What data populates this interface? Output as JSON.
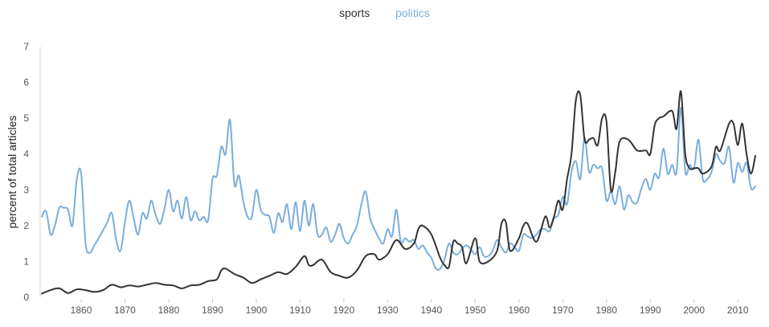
{
  "legend": {
    "sports": "sports",
    "politics": "politics"
  },
  "chart_data": {
    "type": "line",
    "title": "",
    "xlabel": "",
    "ylabel": "percent of total articles",
    "xlim": [
      1851,
      2014
    ],
    "ylim": [
      0,
      7
    ],
    "x_ticks": [
      1860,
      1870,
      1880,
      1890,
      1900,
      1910,
      1920,
      1930,
      1940,
      1950,
      1960,
      1970,
      1980,
      1990,
      2000,
      2010
    ],
    "y_ticks": [
      0,
      1,
      2,
      3,
      4,
      5,
      6,
      7
    ],
    "grid": false,
    "legend_position": "top-center",
    "series": [
      {
        "name": "sports",
        "color": "#333333",
        "points": [
          [
            1851,
            0.1
          ],
          [
            1853,
            0.2
          ],
          [
            1855,
            0.25
          ],
          [
            1857,
            0.12
          ],
          [
            1859,
            0.22
          ],
          [
            1861,
            0.2
          ],
          [
            1863,
            0.15
          ],
          [
            1865,
            0.2
          ],
          [
            1867,
            0.35
          ],
          [
            1869,
            0.28
          ],
          [
            1871,
            0.33
          ],
          [
            1873,
            0.3
          ],
          [
            1875,
            0.35
          ],
          [
            1877,
            0.4
          ],
          [
            1879,
            0.35
          ],
          [
            1881,
            0.33
          ],
          [
            1883,
            0.25
          ],
          [
            1885,
            0.33
          ],
          [
            1887,
            0.35
          ],
          [
            1889,
            0.45
          ],
          [
            1891,
            0.5
          ],
          [
            1892,
            0.75
          ],
          [
            1893,
            0.8
          ],
          [
            1895,
            0.65
          ],
          [
            1897,
            0.55
          ],
          [
            1899,
            0.4
          ],
          [
            1901,
            0.5
          ],
          [
            1903,
            0.6
          ],
          [
            1905,
            0.7
          ],
          [
            1907,
            0.65
          ],
          [
            1909,
            0.85
          ],
          [
            1911,
            1.15
          ],
          [
            1912,
            0.9
          ],
          [
            1913,
            0.9
          ],
          [
            1915,
            1.05
          ],
          [
            1917,
            0.7
          ],
          [
            1919,
            0.6
          ],
          [
            1921,
            0.55
          ],
          [
            1923,
            0.75
          ],
          [
            1925,
            1.15
          ],
          [
            1927,
            1.2
          ],
          [
            1928,
            1.05
          ],
          [
            1930,
            1.2
          ],
          [
            1932,
            1.6
          ],
          [
            1934,
            1.35
          ],
          [
            1936,
            1.5
          ],
          [
            1937,
            1.9
          ],
          [
            1938,
            2.0
          ],
          [
            1940,
            1.75
          ],
          [
            1942,
            1.1
          ],
          [
            1943,
            0.9
          ],
          [
            1944,
            0.85
          ],
          [
            1945,
            1.55
          ],
          [
            1946,
            1.5
          ],
          [
            1947,
            1.4
          ],
          [
            1948,
            0.95
          ],
          [
            1950,
            1.65
          ],
          [
            1951,
            1.0
          ],
          [
            1953,
            1.0
          ],
          [
            1955,
            1.3
          ],
          [
            1956,
            2.05
          ],
          [
            1957,
            2.1
          ],
          [
            1958,
            1.3
          ],
          [
            1960,
            1.65
          ],
          [
            1961,
            2.0
          ],
          [
            1962,
            2.05
          ],
          [
            1964,
            1.55
          ],
          [
            1966,
            2.25
          ],
          [
            1967,
            1.95
          ],
          [
            1968,
            2.25
          ],
          [
            1969,
            2.7
          ],
          [
            1970,
            2.45
          ],
          [
            1971,
            3.3
          ],
          [
            1972,
            4.0
          ],
          [
            1973,
            5.5
          ],
          [
            1974,
            5.65
          ],
          [
            1975,
            4.4
          ],
          [
            1976,
            4.4
          ],
          [
            1977,
            4.45
          ],
          [
            1978,
            4.25
          ],
          [
            1979,
            5.0
          ],
          [
            1980,
            4.9
          ],
          [
            1981,
            3.0
          ],
          [
            1982,
            3.5
          ],
          [
            1983,
            4.35
          ],
          [
            1985,
            4.4
          ],
          [
            1987,
            4.1
          ],
          [
            1989,
            4.1
          ],
          [
            1990,
            4.0
          ],
          [
            1991,
            4.8
          ],
          [
            1992,
            5.0
          ],
          [
            1993,
            5.05
          ],
          [
            1995,
            5.2
          ],
          [
            1996,
            4.7
          ],
          [
            1997,
            5.75
          ],
          [
            1998,
            4.0
          ],
          [
            1999,
            3.6
          ],
          [
            2000,
            3.6
          ],
          [
            2001,
            3.6
          ],
          [
            2002,
            3.45
          ],
          [
            2004,
            3.65
          ],
          [
            2005,
            4.2
          ],
          [
            2006,
            4.1
          ],
          [
            2008,
            4.85
          ],
          [
            2009,
            4.85
          ],
          [
            2010,
            4.25
          ],
          [
            2011,
            4.85
          ],
          [
            2012,
            4.0
          ],
          [
            2013,
            3.45
          ],
          [
            2014,
            3.95
          ]
        ]
      },
      {
        "name": "politics",
        "color": "#7aaedc",
        "points": [
          [
            1851,
            2.25
          ],
          [
            1852,
            2.4
          ],
          [
            1853,
            1.75
          ],
          [
            1854,
            2.0
          ],
          [
            1855,
            2.5
          ],
          [
            1856,
            2.5
          ],
          [
            1857,
            2.45
          ],
          [
            1858,
            2.0
          ],
          [
            1859,
            3.3
          ],
          [
            1860,
            3.45
          ],
          [
            1861,
            1.5
          ],
          [
            1862,
            1.25
          ],
          [
            1863,
            1.45
          ],
          [
            1864,
            1.65
          ],
          [
            1866,
            2.1
          ],
          [
            1867,
            2.35
          ],
          [
            1868,
            1.6
          ],
          [
            1869,
            1.3
          ],
          [
            1870,
            2.1
          ],
          [
            1871,
            2.7
          ],
          [
            1872,
            2.2
          ],
          [
            1873,
            1.75
          ],
          [
            1874,
            2.35
          ],
          [
            1875,
            2.2
          ],
          [
            1876,
            2.7
          ],
          [
            1877,
            2.3
          ],
          [
            1878,
            2.05
          ],
          [
            1879,
            2.45
          ],
          [
            1880,
            3.0
          ],
          [
            1881,
            2.4
          ],
          [
            1882,
            2.7
          ],
          [
            1883,
            2.2
          ],
          [
            1884,
            2.8
          ],
          [
            1885,
            2.15
          ],
          [
            1886,
            2.4
          ],
          [
            1887,
            2.15
          ],
          [
            1888,
            2.25
          ],
          [
            1889,
            2.15
          ],
          [
            1890,
            3.3
          ],
          [
            1891,
            3.4
          ],
          [
            1892,
            4.2
          ],
          [
            1893,
            4.0
          ],
          [
            1894,
            4.95
          ],
          [
            1895,
            3.15
          ],
          [
            1896,
            3.4
          ],
          [
            1897,
            2.7
          ],
          [
            1898,
            2.25
          ],
          [
            1899,
            2.25
          ],
          [
            1900,
            3.0
          ],
          [
            1901,
            2.45
          ],
          [
            1902,
            2.3
          ],
          [
            1903,
            2.25
          ],
          [
            1904,
            1.8
          ],
          [
            1905,
            2.35
          ],
          [
            1906,
            2.1
          ],
          [
            1907,
            2.6
          ],
          [
            1908,
            1.9
          ],
          [
            1909,
            2.65
          ],
          [
            1910,
            1.85
          ],
          [
            1911,
            2.7
          ],
          [
            1912,
            2.0
          ],
          [
            1913,
            2.6
          ],
          [
            1914,
            1.75
          ],
          [
            1915,
            1.75
          ],
          [
            1916,
            1.95
          ],
          [
            1917,
            1.55
          ],
          [
            1918,
            1.75
          ],
          [
            1919,
            2.05
          ],
          [
            1920,
            1.65
          ],
          [
            1921,
            1.5
          ],
          [
            1922,
            1.75
          ],
          [
            1923,
            2.0
          ],
          [
            1924,
            2.6
          ],
          [
            1925,
            2.95
          ],
          [
            1926,
            2.2
          ],
          [
            1927,
            1.9
          ],
          [
            1928,
            1.65
          ],
          [
            1929,
            1.5
          ],
          [
            1930,
            1.9
          ],
          [
            1931,
            1.7
          ],
          [
            1932,
            2.45
          ],
          [
            1933,
            1.55
          ],
          [
            1934,
            1.65
          ],
          [
            1935,
            1.55
          ],
          [
            1936,
            1.6
          ],
          [
            1937,
            1.35
          ],
          [
            1938,
            1.45
          ],
          [
            1939,
            1.25
          ],
          [
            1940,
            1.1
          ],
          [
            1941,
            0.8
          ],
          [
            1942,
            0.8
          ],
          [
            1943,
            1.05
          ],
          [
            1944,
            1.5
          ],
          [
            1945,
            1.25
          ],
          [
            1946,
            1.2
          ],
          [
            1947,
            1.35
          ],
          [
            1948,
            1.45
          ],
          [
            1949,
            1.35
          ],
          [
            1950,
            1.2
          ],
          [
            1951,
            1.4
          ],
          [
            1952,
            1.15
          ],
          [
            1953,
            1.15
          ],
          [
            1954,
            1.3
          ],
          [
            1955,
            1.6
          ],
          [
            1956,
            1.4
          ],
          [
            1957,
            1.25
          ],
          [
            1958,
            1.5
          ],
          [
            1959,
            1.4
          ],
          [
            1960,
            1.3
          ],
          [
            1961,
            1.75
          ],
          [
            1962,
            1.7
          ],
          [
            1963,
            1.65
          ],
          [
            1964,
            1.75
          ],
          [
            1965,
            1.9
          ],
          [
            1966,
            1.9
          ],
          [
            1967,
            1.85
          ],
          [
            1968,
            2.2
          ],
          [
            1969,
            2.3
          ],
          [
            1970,
            2.8
          ],
          [
            1971,
            2.6
          ],
          [
            1972,
            3.5
          ],
          [
            1973,
            3.8
          ],
          [
            1974,
            3.3
          ],
          [
            1975,
            4.45
          ],
          [
            1976,
            3.5
          ],
          [
            1977,
            3.7
          ],
          [
            1978,
            3.6
          ],
          [
            1979,
            3.6
          ],
          [
            1980,
            2.7
          ],
          [
            1981,
            2.95
          ],
          [
            1982,
            2.6
          ],
          [
            1983,
            3.1
          ],
          [
            1984,
            2.45
          ],
          [
            1985,
            2.85
          ],
          [
            1986,
            2.65
          ],
          [
            1987,
            2.65
          ],
          [
            1988,
            3.05
          ],
          [
            1989,
            3.3
          ],
          [
            1990,
            3.0
          ],
          [
            1991,
            3.45
          ],
          [
            1992,
            3.35
          ],
          [
            1993,
            4.15
          ],
          [
            1994,
            3.45
          ],
          [
            1995,
            3.7
          ],
          [
            1996,
            3.5
          ],
          [
            1997,
            5.3
          ],
          [
            1998,
            3.5
          ],
          [
            1999,
            3.7
          ],
          [
            2000,
            3.6
          ],
          [
            2001,
            4.4
          ],
          [
            2002,
            3.3
          ],
          [
            2003,
            3.3
          ],
          [
            2004,
            3.5
          ],
          [
            2005,
            4.0
          ],
          [
            2006,
            3.8
          ],
          [
            2007,
            3.75
          ],
          [
            2008,
            4.2
          ],
          [
            2009,
            3.2
          ],
          [
            2010,
            3.75
          ],
          [
            2011,
            3.5
          ],
          [
            2012,
            3.75
          ],
          [
            2013,
            3.05
          ],
          [
            2014,
            3.1
          ]
        ]
      }
    ]
  }
}
